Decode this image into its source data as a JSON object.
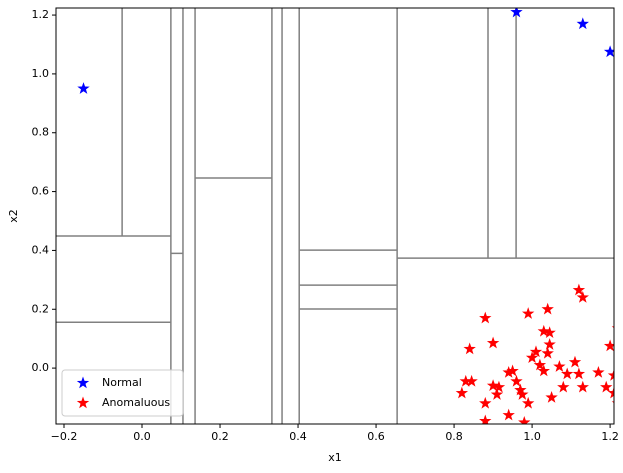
{
  "chart_data": {
    "type": "scatter",
    "xlabel": "x1",
    "ylabel": "x2",
    "xlim": [
      -0.2205,
      1.21
    ],
    "ylim": [
      -0.19,
      1.224
    ],
    "xticks": [
      {
        "value": -0.2,
        "label": "−0.2"
      },
      {
        "value": 0,
        "label": "0.0"
      },
      0.2,
      0.4,
      0.6,
      0.8,
      {
        "value": 1,
        "label": "1.0"
      },
      1.2
    ],
    "yticks": [
      {
        "value": 0,
        "label": "0.0"
      },
      0.2,
      0.4,
      0.6,
      0.8,
      {
        "value": 1,
        "label": "1.0"
      },
      1.2
    ],
    "legend": "lower left",
    "series": [
      {
        "name": "Normal",
        "color": "#0000ff",
        "x": [
          -0.15,
          0.96,
          1.13,
          1.2
        ],
        "y": [
          0.95,
          1.21,
          1.17,
          1.075
        ]
      },
      {
        "name": "Anomaluous",
        "color": "#ff0000",
        "x": [
          1.12,
          1.13,
          1.04,
          0.99,
          0.88,
          1.22,
          1.03,
          1.045,
          0.9,
          1.045,
          0.84,
          1.2,
          1.01,
          1.04,
          1.0,
          1.11,
          1.02,
          1.07,
          0.95,
          0.94,
          1.03,
          1.09,
          1.12,
          1.17,
          1.21,
          0.96,
          0.83,
          0.845,
          0.9,
          0.915,
          1.08,
          1.13,
          1.19,
          0.82,
          0.97,
          0.91,
          1.21,
          0.975,
          1.05,
          0.88,
          0.99,
          1.22,
          0.94,
          0.88,
          0.98
        ],
        "y": [
          0.265,
          0.24,
          0.2,
          0.185,
          0.17,
          0.135,
          0.125,
          0.12,
          0.085,
          0.08,
          0.065,
          0.075,
          0.055,
          0.05,
          0.035,
          0.02,
          0.01,
          0.005,
          -0.01,
          -0.015,
          -0.01,
          -0.02,
          -0.02,
          -0.015,
          -0.025,
          -0.045,
          -0.045,
          -0.045,
          -0.06,
          -0.065,
          -0.065,
          -0.065,
          -0.065,
          -0.085,
          -0.075,
          -0.09,
          -0.085,
          -0.09,
          -0.1,
          -0.12,
          -0.12,
          -0.12,
          -0.16,
          -0.18,
          -0.185
        ]
      }
    ],
    "splits": [
      {
        "x": [
          -0.051,
          -0.051
        ],
        "y": [
          0.449,
          1.224
        ]
      },
      {
        "x": [
          -0.2205,
          0.074
        ],
        "y": [
          0.449,
          0.449
        ]
      },
      {
        "x": [
          -0.2205,
          0.074
        ],
        "y": [
          0.156,
          0.156
        ]
      },
      {
        "x": [
          0.074,
          0.074
        ],
        "y": [
          -0.19,
          1.224
        ]
      },
      {
        "x": [
          0.074,
          0.105
        ],
        "y": [
          0.39,
          0.39
        ]
      },
      {
        "x": [
          0.105,
          0.105
        ],
        "y": [
          -0.19,
          1.224
        ]
      },
      {
        "x": [
          0.136,
          0.136
        ],
        "y": [
          -0.19,
          1.224
        ]
      },
      {
        "x": [
          0.136,
          0.333
        ],
        "y": [
          0.646,
          0.646
        ]
      },
      {
        "x": [
          0.333,
          0.333
        ],
        "y": [
          -0.19,
          1.224
        ]
      },
      {
        "x": [
          0.359,
          0.359
        ],
        "y": [
          -0.19,
          1.224
        ]
      },
      {
        "x": [
          0.403,
          0.403
        ],
        "y": [
          -0.19,
          1.224
        ]
      },
      {
        "x": [
          0.403,
          0.654
        ],
        "y": [
          0.401,
          0.401
        ]
      },
      {
        "x": [
          0.403,
          0.654
        ],
        "y": [
          0.282,
          0.282
        ]
      },
      {
        "x": [
          0.403,
          0.654
        ],
        "y": [
          0.201,
          0.201
        ]
      },
      {
        "x": [
          0.654,
          0.654
        ],
        "y": [
          -0.19,
          1.224
        ]
      },
      {
        "x": [
          0.654,
          1.21
        ],
        "y": [
          0.374,
          0.374
        ]
      },
      {
        "x": [
          0.887,
          0.887
        ],
        "y": [
          0.374,
          1.224
        ]
      },
      {
        "x": [
          0.959,
          0.959
        ],
        "y": [
          0.374,
          1.224
        ]
      }
    ],
    "split_color": "#808080"
  }
}
